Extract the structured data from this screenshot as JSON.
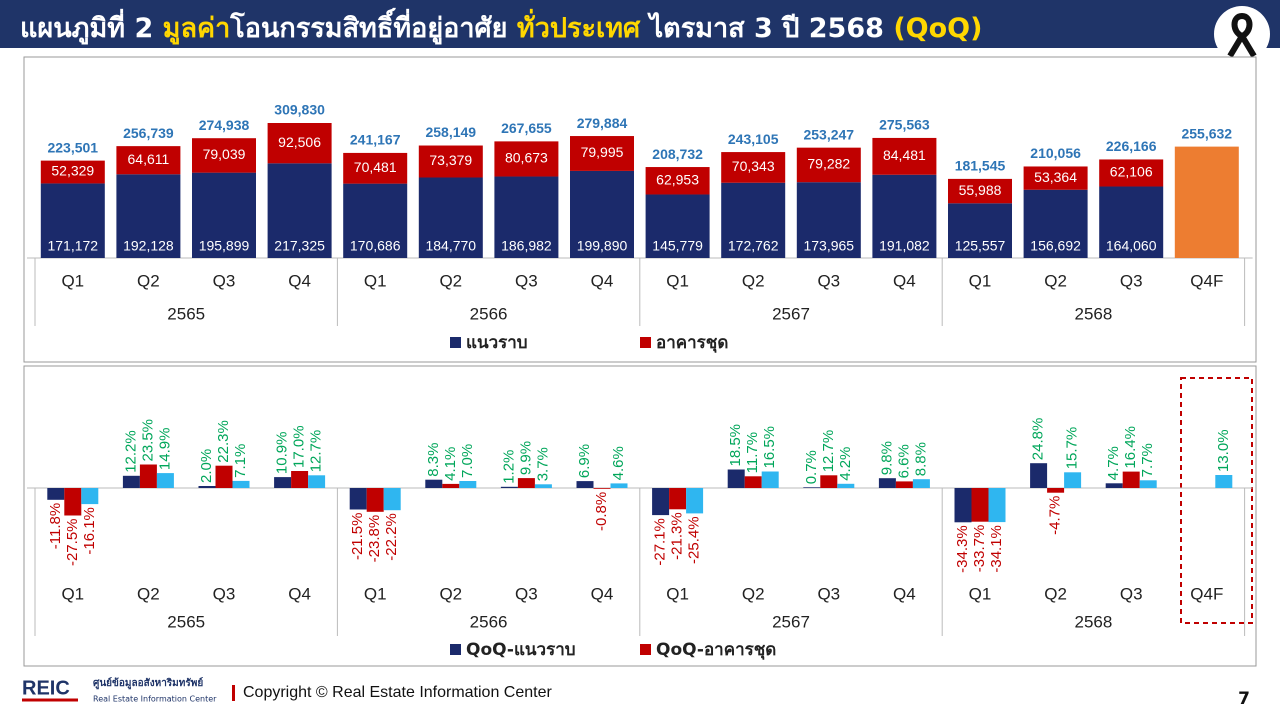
{
  "header": {
    "title_parts": [
      {
        "text": "แผนภูมิที่ 2 ",
        "color": "#ffffff"
      },
      {
        "text": "มูลค่า",
        "color": "#ffd700"
      },
      {
        "text": "โอนกรรมสิทธิ์ที่อยู่อาศัย ",
        "color": "#ffffff"
      },
      {
        "text": "ทั่วประเทศ",
        "color": "#ffd700"
      },
      {
        "text": " ไตรมาส 3 ปี 2568 ",
        "color": "#ffffff"
      },
      {
        "text": "(QoQ)",
        "color": "#ffd700"
      }
    ]
  },
  "chart_data": [
    {
      "type": "stacked_bar",
      "categories": [
        "Q1",
        "Q2",
        "Q3",
        "Q4",
        "Q1",
        "Q2",
        "Q3",
        "Q4",
        "Q1",
        "Q2",
        "Q3",
        "Q4",
        "Q1",
        "Q2",
        "Q3",
        "Q4F"
      ],
      "groups": [
        "2565",
        "2566",
        "2567",
        "2568"
      ],
      "series": [
        {
          "name": "แนวราบ",
          "color": "#1b2a6b",
          "values": [
            171172,
            192128,
            195899,
            217325,
            170686,
            184770,
            186982,
            199890,
            145779,
            172762,
            173965,
            191082,
            125557,
            156692,
            164060,
            null
          ],
          "value_labels": [
            "171,172",
            "192,128",
            "195,899",
            "217,325",
            "170,686",
            "184,770",
            "186,982",
            "199,890",
            "145,779",
            "172,762",
            "173,965",
            "191,082",
            "125,557",
            "156,692",
            "164,060",
            null
          ]
        },
        {
          "name": "อาคารชุด",
          "color": "#c00000",
          "values": [
            52329,
            64611,
            79039,
            92506,
            70481,
            73379,
            80673,
            79995,
            62953,
            70343,
            79282,
            84481,
            55988,
            53364,
            62106,
            null
          ],
          "value_labels": [
            "52,329",
            "64,611",
            "79,039",
            "92,506",
            "70,481",
            "73,379",
            "80,673",
            "79,995",
            "62,953",
            "70,343",
            "79,282",
            "84,481",
            "55,988",
            "53,364",
            "62,106",
            null
          ]
        }
      ],
      "totals": {
        "values": [
          223501,
          256739,
          274938,
          309830,
          241167,
          258149,
          267655,
          279884,
          208732,
          243105,
          253247,
          275563,
          181545,
          210056,
          226166,
          255632
        ],
        "value_labels": [
          "223,501",
          "256,739",
          "274,938",
          "309,830",
          "241,167",
          "258,149",
          "267,655",
          "279,884",
          "208,732",
          "243,105",
          "253,247",
          "275,563",
          "181,545",
          "210,056",
          "226,166",
          "255,632"
        ],
        "color": "#2e75b6"
      },
      "forecast_color": "#ed7d31"
    },
    {
      "type": "grouped_bar",
      "categories": [
        "Q1",
        "Q2",
        "Q3",
        "Q4",
        "Q1",
        "Q2",
        "Q3",
        "Q4",
        "Q1",
        "Q2",
        "Q3",
        "Q4",
        "Q1",
        "Q2",
        "Q3",
        "Q4F"
      ],
      "groups": [
        "2565",
        "2566",
        "2567",
        "2568"
      ],
      "series": [
        {
          "name": "QoQ-แนวราบ",
          "color": "#1b2a6b",
          "values": [
            -11.8,
            12.2,
            2.0,
            10.9,
            -21.5,
            8.3,
            1.2,
            6.9,
            -27.1,
            18.5,
            0.7,
            9.8,
            -34.3,
            24.8,
            4.7,
            null
          ],
          "value_labels": [
            "-11.8%",
            "12.2%",
            "2.0%",
            "10.9%",
            "-21.5%",
            "8.3%",
            "1.2%",
            "6.9%",
            "-27.1%",
            "18.5%",
            "0.7%",
            "9.8%",
            "-34.3%",
            "24.8%",
            "4.7%",
            null
          ]
        },
        {
          "name": "QoQ-อาคารชุด",
          "color": "#c00000",
          "values": [
            -27.5,
            23.5,
            22.3,
            17.0,
            -23.8,
            4.1,
            9.9,
            -0.8,
            -21.3,
            11.7,
            12.7,
            6.6,
            -33.7,
            -4.7,
            16.4,
            null
          ],
          "value_labels": [
            "-27.5%",
            "23.5%",
            "22.3%",
            "17.0%",
            "-23.8%",
            "4.1%",
            "9.9%",
            "-0.8%",
            "-21.3%",
            "11.7%",
            "12.7%",
            "6.6%",
            "-33.7%",
            "-4.7%",
            "16.4%",
            null
          ]
        },
        {
          "color": "#2fb6f0",
          "values": [
            -16.1,
            14.9,
            7.1,
            12.7,
            -22.2,
            7.0,
            3.7,
            4.6,
            -25.4,
            16.5,
            4.2,
            8.8,
            -34.1,
            15.7,
            7.7,
            13.0
          ],
          "value_labels": [
            "-16.1%",
            "14.9%",
            "7.1%",
            "12.7%",
            "-22.2%",
            "7.0%",
            "3.7%",
            "4.6%",
            "-25.4%",
            "16.5%",
            "4.2%",
            "8.8%",
            "-34.1%",
            "15.7%",
            "7.7%",
            "13.0%"
          ]
        }
      ],
      "positive_label_color": "#00a65a",
      "negative_label_color": "#c00000"
    }
  ],
  "footer": {
    "logo": "REIC",
    "org_th": "ศูนย์ข้อมูลอสังหาริมทรัพย์",
    "org_en": "Real Estate Information Center",
    "copyright": "Copyright © Real Estate Information Center",
    "page": "7"
  }
}
